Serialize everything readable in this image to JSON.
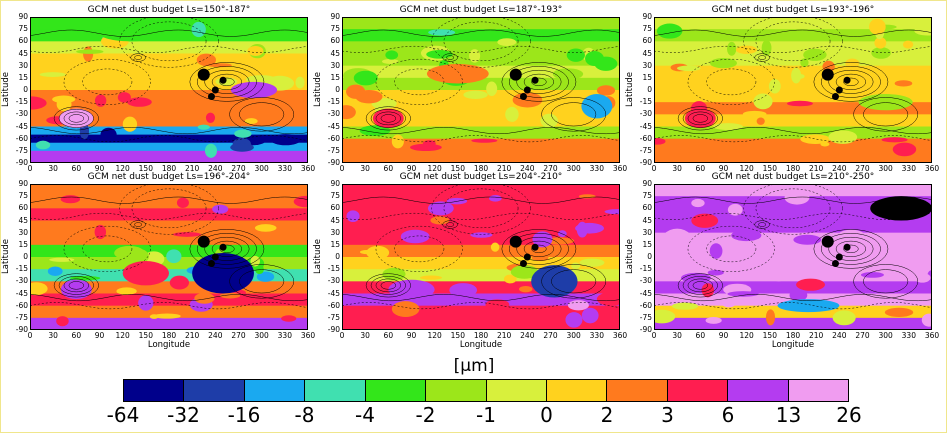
{
  "chart_data": [
    {
      "type": "heatmap",
      "title": "GCM net dust budget Ls=150°-187°",
      "xlabel": "",
      "ylabel": "Latitude",
      "x_ticks": [
        "0",
        "30",
        "60",
        "90",
        "120",
        "150",
        "180",
        "210",
        "240",
        "270",
        "300",
        "330",
        "360"
      ],
      "y_ticks": [
        "90",
        "75",
        "60",
        "45",
        "30",
        "15",
        "0",
        "-15",
        "-30",
        "-45",
        "-60",
        "-75",
        "-90"
      ],
      "xlim": [
        0,
        360
      ],
      "ylim": [
        -90,
        90
      ],
      "bands": [
        {
          "lat": 90,
          "level": 4
        },
        {
          "lat": 75,
          "level": 4
        },
        {
          "lat": 60,
          "level": 6
        },
        {
          "lat": 45,
          "level": 7
        },
        {
          "lat": 30,
          "level": 7
        },
        {
          "lat": 15,
          "level": 7
        },
        {
          "lat": 0,
          "level": 8
        },
        {
          "lat": -15,
          "level": 8
        },
        {
          "lat": -30,
          "level": 8
        },
        {
          "lat": -45,
          "level": 2
        },
        {
          "lat": -55,
          "level": 0
        },
        {
          "lat": -65,
          "level": 2
        },
        {
          "lat": -75,
          "level": 10
        },
        {
          "lat": -90,
          "level": 9
        }
      ],
      "blobs": [
        {
          "lon": 60,
          "lat": -35,
          "rx": 22,
          "ry": 12,
          "level": 11
        },
        {
          "lon": 130,
          "lat": 70,
          "rx": 40,
          "ry": 10,
          "level": 4
        },
        {
          "lon": 290,
          "lat": 0,
          "rx": 30,
          "ry": 10,
          "level": 10
        }
      ]
    },
    {
      "type": "heatmap",
      "title": "GCM net dust budget Ls=187°-193°",
      "xlabel": "",
      "ylabel": "Latitude",
      "x_ticks": [
        "0",
        "30",
        "60",
        "90",
        "120",
        "150",
        "180",
        "210",
        "240",
        "270",
        "300",
        "330",
        "360"
      ],
      "y_ticks": [
        "90",
        "75",
        "60",
        "45",
        "30",
        "15",
        "0",
        "-15",
        "-30",
        "-45",
        "-60",
        "-75",
        "-90"
      ],
      "xlim": [
        0,
        360
      ],
      "ylim": [
        -90,
        90
      ],
      "bands": [
        {
          "lat": 90,
          "level": 5
        },
        {
          "lat": 75,
          "level": 4
        },
        {
          "lat": 60,
          "level": 5
        },
        {
          "lat": 45,
          "level": 5
        },
        {
          "lat": 30,
          "level": 6
        },
        {
          "lat": 15,
          "level": 5
        },
        {
          "lat": 0,
          "level": 7
        },
        {
          "lat": -15,
          "level": 7
        },
        {
          "lat": -30,
          "level": 7
        },
        {
          "lat": -45,
          "level": 5
        },
        {
          "lat": -60,
          "level": 8
        },
        {
          "lat": -75,
          "level": 8
        },
        {
          "lat": -90,
          "level": 8
        }
      ],
      "blobs": [
        {
          "lon": 60,
          "lat": -35,
          "rx": 20,
          "ry": 12,
          "level": 9
        },
        {
          "lon": 330,
          "lat": -20,
          "rx": 20,
          "ry": 15,
          "level": 2
        },
        {
          "lon": 150,
          "lat": 20,
          "rx": 40,
          "ry": 12,
          "level": 8
        }
      ]
    },
    {
      "type": "heatmap",
      "title": "GCM net dust budget Ls=193°-196°",
      "xlabel": "",
      "ylabel": "Latitude",
      "x_ticks": [
        "0",
        "30",
        "60",
        "90",
        "120",
        "150",
        "180",
        "210",
        "240",
        "270",
        "300",
        "330",
        "360"
      ],
      "y_ticks": [
        "90",
        "75",
        "60",
        "45",
        "30",
        "15",
        "0",
        "-15",
        "-30",
        "-45",
        "-60",
        "-75",
        "-90"
      ],
      "xlim": [
        0,
        360
      ],
      "ylim": [
        -90,
        90
      ],
      "bands": [
        {
          "lat": 90,
          "level": 6
        },
        {
          "lat": 75,
          "level": 5
        },
        {
          "lat": 60,
          "level": 6
        },
        {
          "lat": 45,
          "level": 6
        },
        {
          "lat": 30,
          "level": 7
        },
        {
          "lat": 15,
          "level": 7
        },
        {
          "lat": 0,
          "level": 7
        },
        {
          "lat": -15,
          "level": 8
        },
        {
          "lat": -30,
          "level": 7
        },
        {
          "lat": -45,
          "level": 5
        },
        {
          "lat": -60,
          "level": 8
        },
        {
          "lat": -75,
          "level": 8
        },
        {
          "lat": -90,
          "level": 8
        }
      ],
      "blobs": [
        {
          "lon": 60,
          "lat": -35,
          "rx": 20,
          "ry": 12,
          "level": 9
        },
        {
          "lon": 300,
          "lat": -15,
          "rx": 35,
          "ry": 10,
          "level": 5
        }
      ]
    },
    {
      "type": "heatmap",
      "title": "GCM net dust budget Ls=196°-204°",
      "xlabel": "Longitude",
      "ylabel": "Latitude",
      "x_ticks": [
        "0",
        "30",
        "60",
        "90",
        "120",
        "150",
        "180",
        "210",
        "240",
        "270",
        "300",
        "330",
        "360"
      ],
      "y_ticks": [
        "90",
        "75",
        "60",
        "45",
        "30",
        "15",
        "0",
        "-15",
        "-30",
        "-45",
        "-60",
        "-75",
        "-90"
      ],
      "xlim": [
        0,
        360
      ],
      "ylim": [
        -90,
        90
      ],
      "bands": [
        {
          "lat": 90,
          "level": 8
        },
        {
          "lat": 75,
          "level": 8
        },
        {
          "lat": 60,
          "level": 9
        },
        {
          "lat": 45,
          "level": 8
        },
        {
          "lat": 30,
          "level": 8
        },
        {
          "lat": 15,
          "level": 4
        },
        {
          "lat": 0,
          "level": 5
        },
        {
          "lat": -15,
          "level": 3
        },
        {
          "lat": -30,
          "level": 8
        },
        {
          "lat": -45,
          "level": 9
        },
        {
          "lat": -60,
          "level": 8
        },
        {
          "lat": -75,
          "level": 10
        },
        {
          "lat": -90,
          "level": 9
        }
      ],
      "blobs": [
        {
          "lon": 250,
          "lat": -20,
          "rx": 40,
          "ry": 25,
          "level": 0
        },
        {
          "lon": 60,
          "lat": -40,
          "rx": 20,
          "ry": 12,
          "level": 10
        },
        {
          "lon": 150,
          "lat": -20,
          "rx": 30,
          "ry": 15,
          "level": 9
        }
      ]
    },
    {
      "type": "heatmap",
      "title": "GCM net dust budget Ls=204°-210°",
      "xlabel": "Longitude",
      "ylabel": "Latitude",
      "x_ticks": [
        "0",
        "30",
        "60",
        "90",
        "120",
        "150",
        "180",
        "210",
        "240",
        "270",
        "300",
        "330",
        "360"
      ],
      "y_ticks": [
        "90",
        "75",
        "60",
        "45",
        "30",
        "15",
        "0",
        "-15",
        "-30",
        "-45",
        "-60",
        "-75",
        "-90"
      ],
      "xlim": [
        0,
        360
      ],
      "ylim": [
        -90,
        90
      ],
      "bands": [
        {
          "lat": 90,
          "level": 9
        },
        {
          "lat": 75,
          "level": 9
        },
        {
          "lat": 60,
          "level": 9
        },
        {
          "lat": 45,
          "level": 9
        },
        {
          "lat": 30,
          "level": 9
        },
        {
          "lat": 15,
          "level": 8
        },
        {
          "lat": 0,
          "level": 7
        },
        {
          "lat": -15,
          "level": 6
        },
        {
          "lat": -30,
          "level": 9
        },
        {
          "lat": -45,
          "level": 10
        },
        {
          "lat": -60,
          "level": 9
        },
        {
          "lat": -75,
          "level": 9
        },
        {
          "lat": -90,
          "level": 9
        }
      ],
      "blobs": [
        {
          "lon": 275,
          "lat": -30,
          "rx": 30,
          "ry": 20,
          "level": 1
        },
        {
          "lon": 90,
          "lat": -40,
          "rx": 30,
          "ry": 12,
          "level": 10
        }
      ]
    },
    {
      "type": "heatmap",
      "title": "GCM net dust budget Ls=210°-250°",
      "xlabel": "Longitude",
      "ylabel": "Latitude",
      "x_ticks": [
        "0",
        "30",
        "60",
        "90",
        "120",
        "150",
        "180",
        "210",
        "240",
        "270",
        "300",
        "330",
        "360"
      ],
      "y_ticks": [
        "90",
        "75",
        "60",
        "45",
        "30",
        "15",
        "0",
        "-15",
        "-30",
        "-45",
        "-60",
        "-75",
        "-90"
      ],
      "xlim": [
        0,
        360
      ],
      "ylim": [
        -90,
        90
      ],
      "bands": [
        {
          "lat": 90,
          "level": 11
        },
        {
          "lat": 75,
          "level": 10
        },
        {
          "lat": 60,
          "level": 10
        },
        {
          "lat": 45,
          "level": 10
        },
        {
          "lat": 30,
          "level": 11
        },
        {
          "lat": 15,
          "level": 11
        },
        {
          "lat": 0,
          "level": 11
        },
        {
          "lat": -15,
          "level": 11
        },
        {
          "lat": -30,
          "level": 10
        },
        {
          "lat": -45,
          "level": 11
        },
        {
          "lat": -60,
          "level": 7
        },
        {
          "lat": -75,
          "level": 10
        },
        {
          "lat": -90,
          "level": 10
        }
      ],
      "blobs": [
        {
          "lon": 200,
          "lat": -60,
          "rx": 40,
          "ry": 8,
          "level": 2
        },
        {
          "lon": 30,
          "lat": 10,
          "rx": 25,
          "ry": 25,
          "level": 11
        },
        {
          "lon": 320,
          "lat": 60,
          "rx": 40,
          "ry": 15,
          "level": 12
        }
      ]
    }
  ],
  "colorbar": {
    "unit": "[μm]",
    "ticks": [
      "-64",
      "-32",
      "-16",
      "-8",
      "-4",
      "-2",
      "-1",
      "0",
      "2",
      "3",
      "6",
      "13",
      "26"
    ],
    "colors": [
      "#00008b",
      "#1e3da8",
      "#1aa9f0",
      "#40e0b0",
      "#33e61a",
      "#9ce61a",
      "#d8f03c",
      "#ffd21e",
      "#ff7a1e",
      "#ff1e50",
      "#b43cf0",
      "#f09cf0"
    ]
  },
  "map_style": {
    "contour_color": "#000000",
    "volcano_color": "#000000",
    "frame_color": "#f0e68c"
  }
}
